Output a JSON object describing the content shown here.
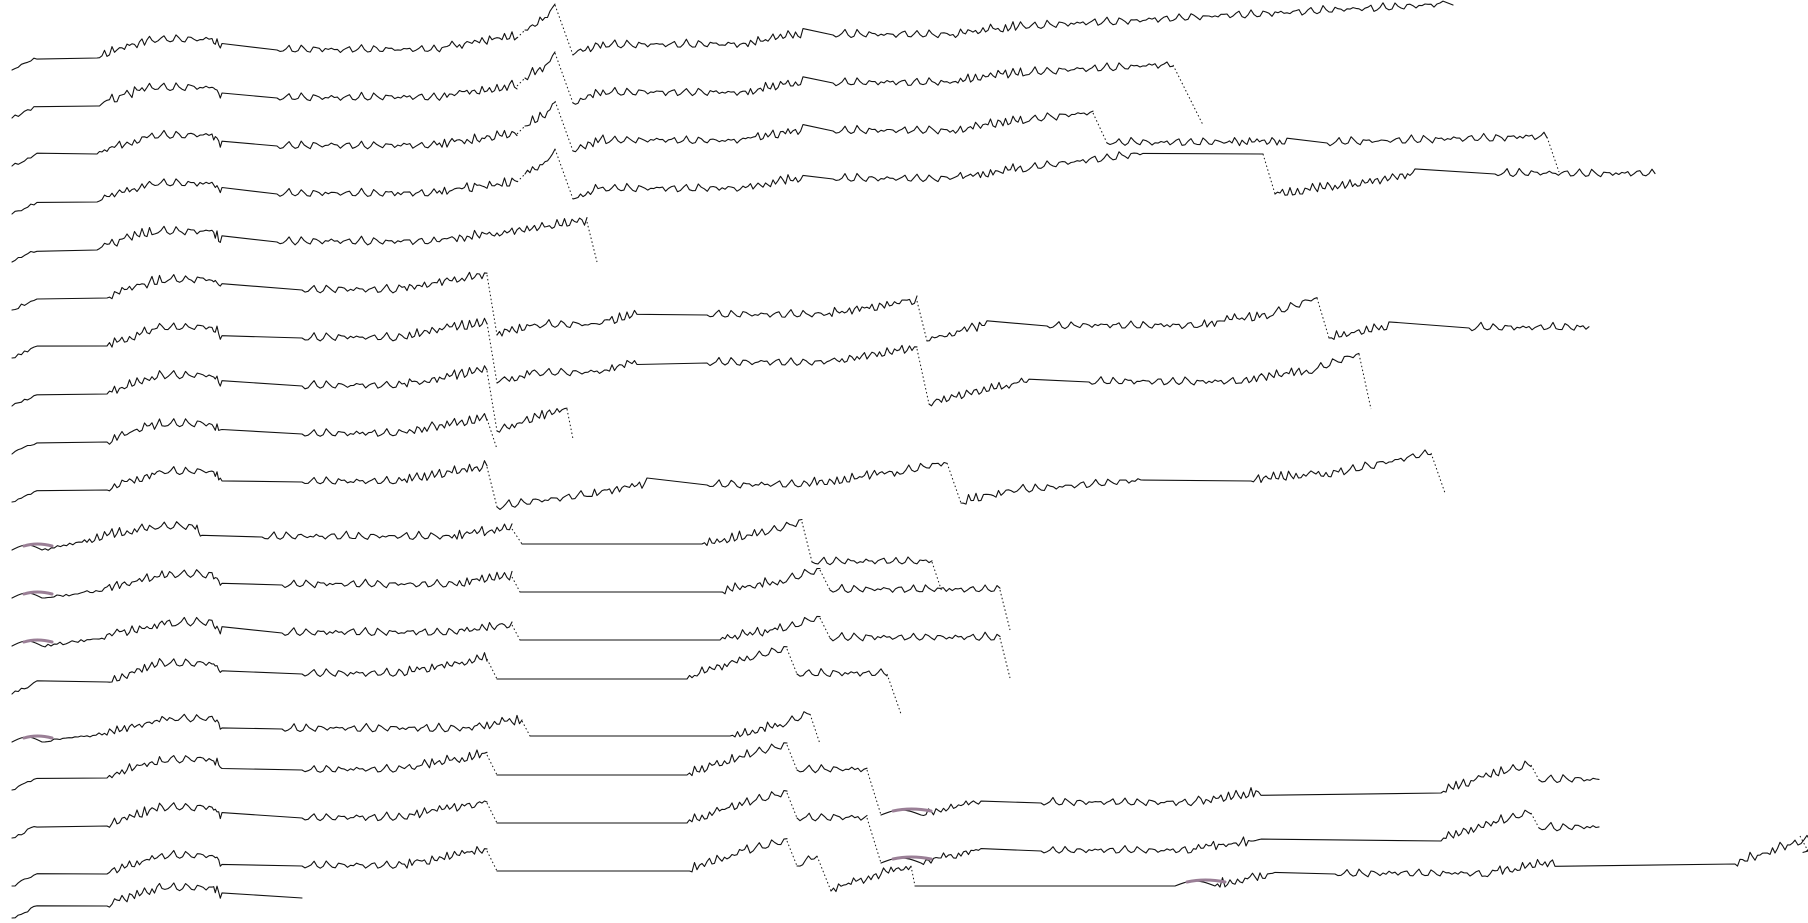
{
  "view": {
    "background_color": "#ffffff",
    "ink_color": "#111111",
    "highlight_color": "#9a7f96",
    "row_count": 19
  }
}
